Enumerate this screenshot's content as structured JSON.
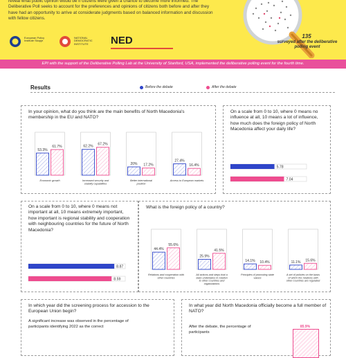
{
  "header": {
    "intro": "reveal what public opinion would be if citizens were given a chance to become more informed. The Deliberative Poll seeks to account for the preferences and opinions of citizens both before and after they have had an opportunity to arrive at considerate judgments based on balanced information and discussion with fellow citizens.",
    "logos": [
      {
        "name": "European Policy Institute Skopje"
      },
      {
        "name": "NATIONAL DEMOCRATIC INSTITUTE"
      },
      {
        "name": "NED"
      }
    ],
    "surveyed_count": "135",
    "surveyed_text": "surveyed after the deliberative polling event"
  },
  "banner": "EPI with the support of the Deliberative Polling Lab at the University of Stanford, USA, implemented the deliberative polling event for the fourth time.",
  "results": {
    "title": "Results",
    "legend_before": "Before the debate",
    "legend_after": "After the debate"
  },
  "colors": {
    "before": "#2f45c9",
    "after": "#ee4c8f",
    "before_fill": "#eef0ff",
    "after_fill": "#ffeef5",
    "banner": "#e9509b",
    "header": "#fde94c"
  },
  "chart_data": [
    {
      "type": "bar",
      "title": "In your opinion, what do you think are the main benefits of North Macedonia's membership in the EU and NATO?",
      "categories": [
        "Economic growth",
        "Increased security and stability capabilities",
        "Better international position",
        "Access to European markets"
      ],
      "series": [
        {
          "name": "Before the debate",
          "values": [
            53.3,
            62.2,
            20.0,
            27.4
          ],
          "labels": [
            "53.3%",
            "62.2%",
            "20%",
            "27.4%"
          ]
        },
        {
          "name": "After the debate",
          "values": [
            61.7,
            67.2,
            17.2,
            16.4
          ],
          "labels": [
            "61.7%",
            "67.2%",
            "17.2%",
            "16.4%"
          ]
        }
      ]
    },
    {
      "type": "bar",
      "title": "On a scale from 0 to 10, where 0 means no influence at all, 10 means a lot of influence, how much does the foreign policy of North Macedonia affect your daily life?",
      "orientation": "horizontal",
      "xlim": [
        0,
        10
      ],
      "series": [
        {
          "name": "Before the debate",
          "values": [
            5.78
          ],
          "labels": [
            "5.78"
          ]
        },
        {
          "name": "After the debate",
          "values": [
            7.04
          ],
          "labels": [
            "7.04"
          ]
        }
      ]
    },
    {
      "type": "bar",
      "title": "On a scale from 0 to 10, where 0 means not important at all, 10 means extremely important, how important is regional stability and cooperation with neighbouring countries for the future of North Macedonia?",
      "orientation": "horizontal",
      "xlim": [
        0,
        10
      ],
      "series": [
        {
          "name": "Before the debate",
          "values": [
            8.87
          ],
          "labels": [
            "8.87"
          ]
        },
        {
          "name": "After the debate",
          "values": [
            8.59
          ],
          "labels": [
            "8.59"
          ]
        }
      ]
    },
    {
      "type": "bar",
      "title": "What is the foreign policy of a country?",
      "categories": [
        "Relations and cooperation with other countries",
        "All actions and steps that a state undertakes in relation to other countries and organizations",
        "Principles of promoting state values",
        "A set of policies on the basis of which the relations with other countries are regulated"
      ],
      "series": [
        {
          "name": "Before the debate",
          "values": [
            44.4,
            25.9,
            14.1,
            11.1
          ],
          "labels": [
            "44.4%",
            "25.9%",
            "14.1%",
            "11.1%"
          ]
        },
        {
          "name": "After the debate",
          "values": [
            55.6,
            41.5,
            10.4,
            15.6
          ],
          "labels": [
            "55.6%",
            "41.5%",
            "10.4%",
            "15.6%"
          ]
        }
      ]
    }
  ],
  "bottom_left": {
    "question": "In which year did the screening process for accession to the European Union begin?",
    "text": "A significant increase was observed in the percentage of participants identifying 2022 as the correct"
  },
  "bottom_right": {
    "question": "In what year did North Macedonia officially become a full member of NATO?",
    "text": "After the debate, the percentage of participants",
    "value_label": "85.9%"
  }
}
